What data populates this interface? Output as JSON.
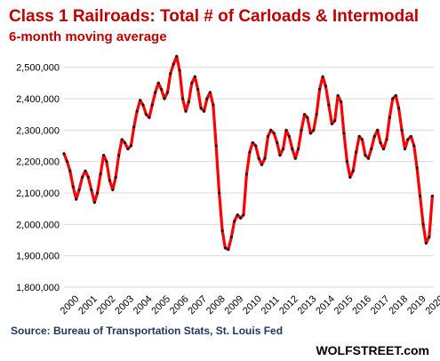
{
  "colors": {
    "title": "#c00000",
    "line": "#ff0000",
    "marker": "#1a1a1a",
    "source": "#1f3864",
    "credit": "#000000",
    "grid": "#d9d9d9"
  },
  "chart_data": {
    "type": "line",
    "title": "Class 1 Railroads: Total # of Carloads & Intermodal",
    "subtitle": "6-month moving average",
    "source": "Source: Bureau of Transportation Stats, St. Louis Fed",
    "credit": "WOLFSTREET.com",
    "ylim": [
      1800000,
      2550000
    ],
    "yticks": [
      1800000,
      1900000,
      2000000,
      2100000,
      2200000,
      2300000,
      2400000,
      2500000
    ],
    "ytick_labels": [
      "1,800,000",
      "1,900,000",
      "2,000,000",
      "2,100,000",
      "2,200,000",
      "2,300,000",
      "2,400,000",
      "2,500,000"
    ],
    "xlim": [
      2000,
      2020.25
    ],
    "xtick_labels": [
      "2000",
      "2001",
      "2002",
      "2003",
      "2004",
      "2005",
      "2006",
      "2007",
      "2008",
      "2009",
      "2010",
      "2011",
      "2012",
      "2013",
      "2014",
      "2015",
      "2016",
      "2017",
      "2018",
      "2019",
      "2020"
    ],
    "grid": true,
    "series": [
      {
        "points": [
          [
            2000.0,
            2225000
          ],
          [
            2000.17,
            2200000
          ],
          [
            2000.33,
            2170000
          ],
          [
            2000.5,
            2120000
          ],
          [
            2000.67,
            2080000
          ],
          [
            2000.83,
            2110000
          ],
          [
            2001.0,
            2150000
          ],
          [
            2001.17,
            2170000
          ],
          [
            2001.33,
            2150000
          ],
          [
            2001.5,
            2110000
          ],
          [
            2001.67,
            2070000
          ],
          [
            2001.83,
            2100000
          ],
          [
            2002.0,
            2160000
          ],
          [
            2002.17,
            2220000
          ],
          [
            2002.33,
            2200000
          ],
          [
            2002.5,
            2140000
          ],
          [
            2002.67,
            2110000
          ],
          [
            2002.83,
            2150000
          ],
          [
            2003.0,
            2220000
          ],
          [
            2003.17,
            2270000
          ],
          [
            2003.33,
            2260000
          ],
          [
            2003.5,
            2240000
          ],
          [
            2003.67,
            2250000
          ],
          [
            2003.83,
            2310000
          ],
          [
            2004.0,
            2360000
          ],
          [
            2004.17,
            2395000
          ],
          [
            2004.33,
            2380000
          ],
          [
            2004.5,
            2350000
          ],
          [
            2004.67,
            2340000
          ],
          [
            2004.83,
            2380000
          ],
          [
            2005.0,
            2420000
          ],
          [
            2005.17,
            2450000
          ],
          [
            2005.33,
            2430000
          ],
          [
            2005.5,
            2400000
          ],
          [
            2005.67,
            2420000
          ],
          [
            2005.83,
            2480000
          ],
          [
            2006.0,
            2510000
          ],
          [
            2006.17,
            2535000
          ],
          [
            2006.33,
            2490000
          ],
          [
            2006.5,
            2400000
          ],
          [
            2006.67,
            2360000
          ],
          [
            2006.83,
            2390000
          ],
          [
            2007.0,
            2450000
          ],
          [
            2007.17,
            2470000
          ],
          [
            2007.33,
            2430000
          ],
          [
            2007.5,
            2370000
          ],
          [
            2007.67,
            2360000
          ],
          [
            2007.83,
            2400000
          ],
          [
            2008.0,
            2420000
          ],
          [
            2008.17,
            2380000
          ],
          [
            2008.33,
            2250000
          ],
          [
            2008.5,
            2100000
          ],
          [
            2008.67,
            1980000
          ],
          [
            2008.83,
            1925000
          ],
          [
            2009.0,
            1920000
          ],
          [
            2009.17,
            1960000
          ],
          [
            2009.33,
            2010000
          ],
          [
            2009.5,
            2030000
          ],
          [
            2009.67,
            2020000
          ],
          [
            2009.83,
            2030000
          ],
          [
            2010.0,
            2160000
          ],
          [
            2010.17,
            2230000
          ],
          [
            2010.33,
            2260000
          ],
          [
            2010.5,
            2250000
          ],
          [
            2010.67,
            2210000
          ],
          [
            2010.83,
            2190000
          ],
          [
            2011.0,
            2210000
          ],
          [
            2011.17,
            2280000
          ],
          [
            2011.33,
            2300000
          ],
          [
            2011.5,
            2290000
          ],
          [
            2011.67,
            2260000
          ],
          [
            2011.83,
            2220000
          ],
          [
            2012.0,
            2240000
          ],
          [
            2012.17,
            2300000
          ],
          [
            2012.33,
            2280000
          ],
          [
            2012.5,
            2240000
          ],
          [
            2012.67,
            2210000
          ],
          [
            2012.83,
            2240000
          ],
          [
            2013.0,
            2300000
          ],
          [
            2013.17,
            2350000
          ],
          [
            2013.33,
            2340000
          ],
          [
            2013.5,
            2290000
          ],
          [
            2013.67,
            2300000
          ],
          [
            2013.83,
            2350000
          ],
          [
            2014.0,
            2430000
          ],
          [
            2014.17,
            2470000
          ],
          [
            2014.33,
            2440000
          ],
          [
            2014.5,
            2380000
          ],
          [
            2014.67,
            2320000
          ],
          [
            2014.83,
            2330000
          ],
          [
            2015.0,
            2410000
          ],
          [
            2015.17,
            2390000
          ],
          [
            2015.33,
            2290000
          ],
          [
            2015.5,
            2200000
          ],
          [
            2015.67,
            2150000
          ],
          [
            2015.83,
            2170000
          ],
          [
            2016.0,
            2230000
          ],
          [
            2016.17,
            2280000
          ],
          [
            2016.33,
            2270000
          ],
          [
            2016.5,
            2220000
          ],
          [
            2016.67,
            2210000
          ],
          [
            2016.83,
            2240000
          ],
          [
            2017.0,
            2280000
          ],
          [
            2017.17,
            2300000
          ],
          [
            2017.33,
            2260000
          ],
          [
            2017.5,
            2240000
          ],
          [
            2017.67,
            2270000
          ],
          [
            2017.83,
            2340000
          ],
          [
            2018.0,
            2400000
          ],
          [
            2018.17,
            2410000
          ],
          [
            2018.33,
            2370000
          ],
          [
            2018.5,
            2300000
          ],
          [
            2018.67,
            2240000
          ],
          [
            2018.83,
            2270000
          ],
          [
            2019.0,
            2280000
          ],
          [
            2019.17,
            2250000
          ],
          [
            2019.33,
            2180000
          ],
          [
            2019.5,
            2090000
          ],
          [
            2019.67,
            2000000
          ],
          [
            2019.83,
            1940000
          ],
          [
            2020.0,
            1960000
          ],
          [
            2020.17,
            2090000
          ]
        ]
      }
    ]
  }
}
